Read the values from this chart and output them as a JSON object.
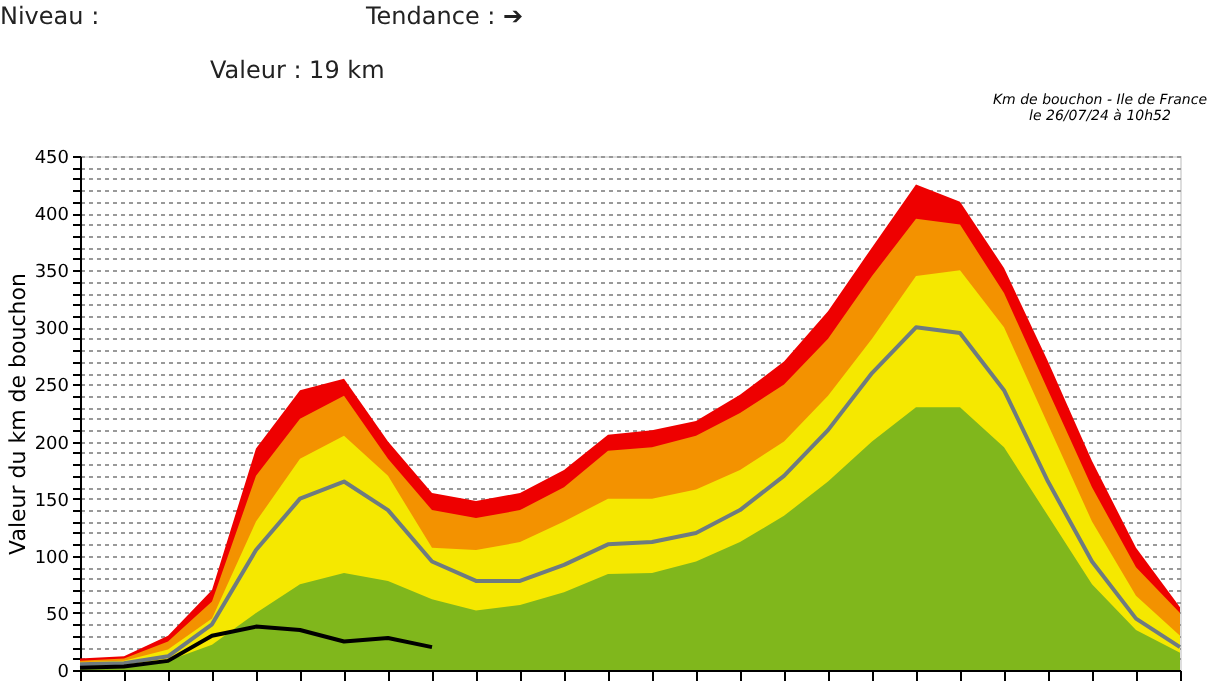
{
  "chart_data": {
    "type": "area",
    "title": "Km de bouchon - Ile de France",
    "subtitle": "le 26/07/24 à 10h52",
    "ylabel": "Valeur du  km de bouchon",
    "annotations": [
      "Niveau :",
      "Tendance : ➔",
      "Valeur : 19 km"
    ],
    "categories": [
      null,
      null,
      null,
      null,
      null,
      null,
      null,
      null,
      null,
      null,
      null,
      null,
      null,
      null,
      null,
      null,
      null,
      null,
      null,
      null,
      null,
      null,
      null,
      null,
      null,
      null
    ],
    "series": [
      {
        "color": "#ee0000",
        "values": [
          10,
          12,
          30,
          70,
          194,
          245,
          255,
          200,
          155,
          148,
          155,
          175,
          206,
          210,
          218,
          241,
          270,
          314,
          370,
          425,
          410,
          352,
          270,
          183,
          107,
          55
        ]
      },
      {
        "color": "#f39200",
        "values": [
          8,
          10,
          25,
          60,
          170,
          220,
          240,
          185,
          140,
          133,
          140,
          160,
          192,
          195,
          205,
          225,
          250,
          290,
          345,
          395,
          390,
          330,
          245,
          160,
          90,
          50
        ]
      },
      {
        "color": "#f5e800",
        "values": [
          7,
          8,
          18,
          45,
          130,
          185,
          205,
          170,
          107,
          105,
          112,
          130,
          150,
          150,
          158,
          175,
          200,
          240,
          290,
          345,
          350,
          300,
          215,
          130,
          65,
          30
        ]
      },
      {
        "color": "#80b71c",
        "values": [
          3,
          4,
          8,
          22,
          50,
          75,
          85,
          78,
          62,
          52,
          57,
          68,
          84,
          85,
          95,
          112,
          135,
          165,
          200,
          230,
          230,
          195,
          135,
          75,
          35,
          15
        ]
      },
      {
        "type": "line",
        "color": "#6e7b80",
        "values": [
          5,
          6,
          12,
          40,
          105,
          150,
          165,
          140,
          95,
          78,
          78,
          92,
          110,
          112,
          120,
          140,
          170,
          210,
          260,
          300,
          295,
          245,
          165,
          95,
          45,
          20
        ]
      },
      {
        "type": "line",
        "color": "#000000",
        "values": [
          2,
          3,
          8,
          30,
          38,
          35,
          25,
          28,
          20,
          null,
          null,
          null,
          null,
          null,
          null,
          null,
          null,
          null,
          null,
          null,
          null,
          null,
          null,
          null,
          null,
          null
        ]
      }
    ],
    "ylim": [
      0,
      450
    ],
    "yticks": [
      0,
      {
        "value": 10,
        "label": null
      },
      {
        "value": 20,
        "label": null
      },
      {
        "value": 30,
        "label": null
      },
      {
        "value": 40,
        "label": null
      },
      50,
      {
        "value": 60,
        "label": null
      },
      {
        "value": 70,
        "label": null
      },
      {
        "value": 80,
        "label": null
      },
      {
        "value": 90,
        "label": null
      },
      100,
      {
        "value": 110,
        "label": null
      },
      {
        "value": 120,
        "label": null
      },
      {
        "value": 130,
        "label": null
      },
      {
        "value": 140,
        "label": null
      },
      150,
      {
        "value": 160,
        "label": null
      },
      {
        "value": 170,
        "label": null
      },
      {
        "value": 180,
        "label": null
      },
      {
        "value": 190,
        "label": null
      },
      200,
      {
        "value": 210,
        "label": null
      },
      {
        "value": 220,
        "label": null
      },
      {
        "value": 230,
        "label": null
      },
      {
        "value": 240,
        "label": null
      },
      250,
      {
        "value": 260,
        "label": null
      },
      {
        "value": 270,
        "label": null
      },
      {
        "value": 280,
        "label": null
      },
      {
        "value": 290,
        "label": null
      },
      300,
      {
        "value": 310,
        "label": null
      },
      {
        "value": 320,
        "label": null
      },
      {
        "value": 330,
        "label": null
      },
      {
        "value": 340,
        "label": null
      },
      350,
      {
        "value": 360,
        "label": null
      },
      {
        "value": 370,
        "label": null
      },
      {
        "value": 380,
        "label": null
      },
      {
        "value": 390,
        "label": null
      },
      400,
      {
        "value": 410,
        "label": null
      },
      {
        "value": 420,
        "label": null
      },
      {
        "value": 430,
        "label": null
      },
      {
        "value": 440,
        "label": null
      },
      450
    ],
    "grid": "y",
    "tick_labels": "y",
    "line_style": "solid",
    "marker": "none"
  }
}
